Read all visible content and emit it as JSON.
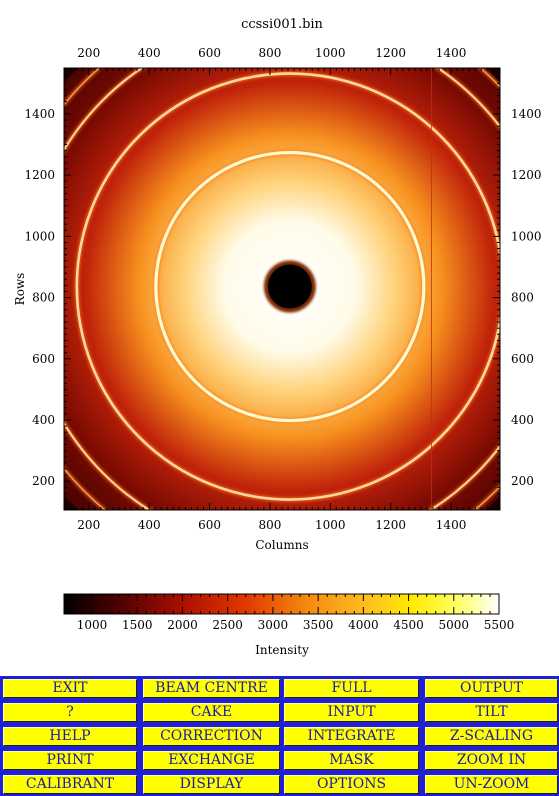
{
  "title": "ccssi001.bin",
  "image_plot": {
    "xlabel": "Columns",
    "ylabel": "Rows",
    "x_ticks": [
      200,
      400,
      600,
      800,
      1000,
      1200,
      1400
    ],
    "y_ticks": [
      200,
      400,
      600,
      800,
      1000,
      1200,
      1400
    ],
    "x_range": [
      118,
      1562
    ],
    "y_range": [
      106,
      1550
    ],
    "beam_centre": {
      "x": 866,
      "y": 836
    }
  },
  "colorbar": {
    "label": "Intensity",
    "ticks": [
      1000,
      1500,
      2000,
      2500,
      3000,
      3500,
      4000,
      4500,
      5000,
      5500
    ],
    "range": [
      690,
      5500
    ]
  },
  "colors": {
    "button_bg": "#ffff00",
    "button_text": "#1a1aa8",
    "panel_bg": "#1f1fd8"
  },
  "buttons": [
    [
      "EXIT",
      "BEAM CENTRE",
      "FULL",
      "OUTPUT"
    ],
    [
      "?",
      "CAKE",
      "INPUT",
      "TILT"
    ],
    [
      "HELP",
      "CORRECTION",
      "INTEGRATE",
      "Z-SCALING"
    ],
    [
      "PRINT",
      "EXCHANGE",
      "MASK",
      "ZOOM IN"
    ],
    [
      "CALIBRANT",
      "DISPLAY",
      "OPTIONS",
      "UN-ZOOM"
    ]
  ]
}
